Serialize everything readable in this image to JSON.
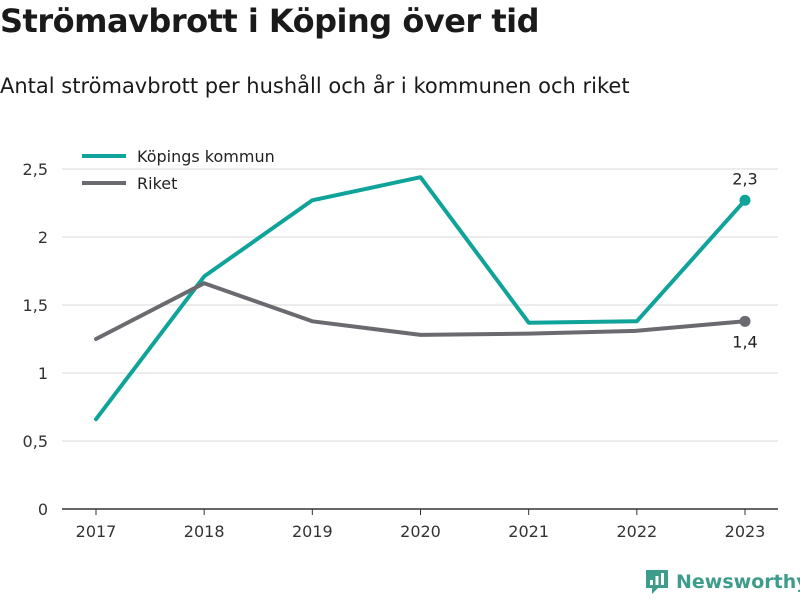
{
  "title": "Strömavbrott i Köping över tid",
  "subtitle": "Antal strömavbrott per hushåll och år i kommunen och riket",
  "brand": "Newsworthy",
  "chart_data": {
    "type": "line",
    "x": [
      "2017",
      "2018",
      "2019",
      "2020",
      "2021",
      "2022",
      "2023"
    ],
    "ylim": [
      0,
      2.5
    ],
    "yticks": [
      0,
      0.5,
      1,
      1.5,
      2,
      2.5
    ],
    "ytick_labels": [
      "0",
      "0,5",
      "1",
      "1,5",
      "2",
      "2,5"
    ],
    "grid": true,
    "legend_position": "top-left",
    "series": [
      {
        "name": "Köpings kommun",
        "color": "#0fa39a",
        "values": [
          0.66,
          1.71,
          2.27,
          2.44,
          1.37,
          1.38,
          2.27
        ],
        "end_label": "2,3"
      },
      {
        "name": "Riket",
        "color": "#6b6a70",
        "values": [
          1.25,
          1.66,
          1.38,
          1.28,
          1.29,
          1.31,
          1.38
        ],
        "end_label": "1,4"
      }
    ]
  }
}
